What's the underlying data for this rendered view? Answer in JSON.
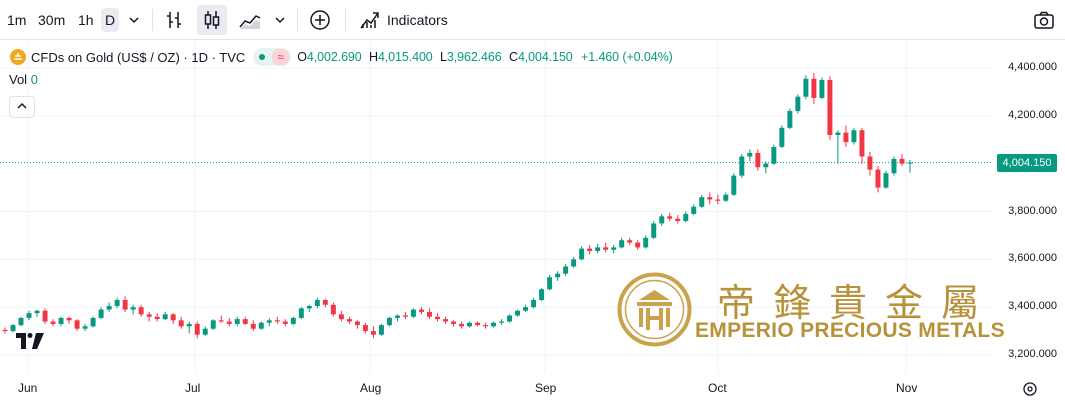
{
  "toolbar": {
    "intervals": [
      "1m",
      "30m",
      "1h",
      "D"
    ],
    "active_interval": "D",
    "indicators_label": "Indicators"
  },
  "legend": {
    "symbol": "CFDs on Gold (US$ / OZ) · 1D · TVC",
    "o_key": "O",
    "o_val": "4,002.690",
    "h_key": "H",
    "h_val": "4,015.400",
    "l_key": "L",
    "l_val": "3,962.466",
    "c_key": "C",
    "c_val": "4,004.150",
    "change": "+1.460 (+0.04%)",
    "vol_label": "Vol",
    "vol_value": "0"
  },
  "watermark": {
    "chinese": "帝鋒貴金屬",
    "english": "EMPERIO PRECIOUS METALS"
  },
  "colors": {
    "up": "#089981",
    "down": "#f23645",
    "gold": "#b8923a"
  },
  "chart_data": {
    "type": "candlestick",
    "x_labels": [
      "Jun",
      "Jul",
      "Aug",
      "Sep",
      "Oct",
      "Nov"
    ],
    "y_ticks": [
      "4,400.000",
      "4,200.000",
      "4,004.150",
      "3,800.000",
      "3,600.000",
      "3,400.000",
      "3,200.000"
    ],
    "y_tick_values": [
      4400,
      4200,
      3800,
      3600,
      3400,
      3200
    ],
    "ylim": [
      3160,
      4450
    ],
    "current_price": "4,004.150",
    "current_value": 4004.15,
    "series": [
      [
        3305,
        3315,
        3290,
        3300
      ],
      [
        3300,
        3330,
        3295,
        3325
      ],
      [
        3325,
        3360,
        3320,
        3355
      ],
      [
        3355,
        3385,
        3345,
        3375
      ],
      [
        3375,
        3390,
        3360,
        3385
      ],
      [
        3385,
        3395,
        3330,
        3340
      ],
      [
        3340,
        3350,
        3320,
        3330
      ],
      [
        3330,
        3360,
        3320,
        3355
      ],
      [
        3355,
        3360,
        3330,
        3345
      ],
      [
        3345,
        3350,
        3300,
        3310
      ],
      [
        3310,
        3330,
        3300,
        3320
      ],
      [
        3320,
        3360,
        3315,
        3355
      ],
      [
        3355,
        3400,
        3350,
        3390
      ],
      [
        3390,
        3420,
        3380,
        3405
      ],
      [
        3405,
        3440,
        3395,
        3430
      ],
      [
        3430,
        3445,
        3380,
        3390
      ],
      [
        3390,
        3410,
        3370,
        3400
      ],
      [
        3400,
        3410,
        3360,
        3370
      ],
      [
        3370,
        3380,
        3340,
        3360
      ],
      [
        3360,
        3375,
        3340,
        3350
      ],
      [
        3350,
        3380,
        3345,
        3370
      ],
      [
        3370,
        3375,
        3330,
        3345
      ],
      [
        3345,
        3360,
        3310,
        3320
      ],
      [
        3320,
        3340,
        3290,
        3330
      ],
      [
        3330,
        3340,
        3270,
        3285
      ],
      [
        3285,
        3320,
        3280,
        3310
      ],
      [
        3310,
        3350,
        3305,
        3345
      ],
      [
        3345,
        3365,
        3335,
        3340
      ],
      [
        3340,
        3355,
        3320,
        3330
      ],
      [
        3330,
        3360,
        3320,
        3350
      ],
      [
        3350,
        3360,
        3325,
        3330
      ],
      [
        3330,
        3345,
        3300,
        3310
      ],
      [
        3310,
        3340,
        3305,
        3335
      ],
      [
        3335,
        3355,
        3320,
        3345
      ],
      [
        3345,
        3360,
        3330,
        3340
      ],
      [
        3340,
        3350,
        3320,
        3330
      ],
      [
        3330,
        3360,
        3325,
        3355
      ],
      [
        3355,
        3400,
        3350,
        3395
      ],
      [
        3395,
        3410,
        3380,
        3405
      ],
      [
        3405,
        3440,
        3395,
        3430
      ],
      [
        3430,
        3435,
        3400,
        3410
      ],
      [
        3410,
        3420,
        3360,
        3370
      ],
      [
        3370,
        3385,
        3340,
        3350
      ],
      [
        3350,
        3360,
        3330,
        3340
      ],
      [
        3340,
        3345,
        3310,
        3325
      ],
      [
        3325,
        3335,
        3290,
        3300
      ],
      [
        3300,
        3320,
        3270,
        3285
      ],
      [
        3285,
        3330,
        3280,
        3325
      ],
      [
        3325,
        3360,
        3320,
        3355
      ],
      [
        3355,
        3370,
        3340,
        3365
      ],
      [
        3365,
        3380,
        3350,
        3360
      ],
      [
        3360,
        3395,
        3355,
        3390
      ],
      [
        3390,
        3400,
        3370,
        3380
      ],
      [
        3380,
        3395,
        3350,
        3360
      ],
      [
        3360,
        3375,
        3340,
        3350
      ],
      [
        3350,
        3360,
        3330,
        3340
      ],
      [
        3340,
        3345,
        3320,
        3330
      ],
      [
        3330,
        3340,
        3310,
        3320
      ],
      [
        3320,
        3340,
        3315,
        3335
      ],
      [
        3335,
        3340,
        3320,
        3325
      ],
      [
        3325,
        3335,
        3310,
        3320
      ],
      [
        3320,
        3340,
        3315,
        3335
      ],
      [
        3335,
        3350,
        3325,
        3340
      ],
      [
        3340,
        3370,
        3335,
        3365
      ],
      [
        3365,
        3390,
        3360,
        3385
      ],
      [
        3385,
        3410,
        3380,
        3400
      ],
      [
        3400,
        3440,
        3395,
        3430
      ],
      [
        3430,
        3480,
        3425,
        3475
      ],
      [
        3475,
        3535,
        3470,
        3525
      ],
      [
        3525,
        3550,
        3510,
        3540
      ],
      [
        3540,
        3580,
        3530,
        3570
      ],
      [
        3570,
        3610,
        3565,
        3600
      ],
      [
        3600,
        3655,
        3595,
        3645
      ],
      [
        3645,
        3660,
        3620,
        3635
      ],
      [
        3635,
        3665,
        3625,
        3650
      ],
      [
        3650,
        3670,
        3630,
        3640
      ],
      [
        3640,
        3660,
        3625,
        3650
      ],
      [
        3650,
        3690,
        3645,
        3680
      ],
      [
        3680,
        3690,
        3660,
        3670
      ],
      [
        3670,
        3680,
        3640,
        3650
      ],
      [
        3650,
        3700,
        3645,
        3690
      ],
      [
        3690,
        3760,
        3685,
        3750
      ],
      [
        3750,
        3790,
        3740,
        3780
      ],
      [
        3780,
        3795,
        3760,
        3770
      ],
      [
        3770,
        3785,
        3750,
        3760
      ],
      [
        3760,
        3800,
        3755,
        3790
      ],
      [
        3790,
        3830,
        3785,
        3820
      ],
      [
        3820,
        3870,
        3815,
        3860
      ],
      [
        3860,
        3880,
        3830,
        3850
      ],
      [
        3850,
        3870,
        3830,
        3845
      ],
      [
        3845,
        3880,
        3840,
        3870
      ],
      [
        3870,
        3960,
        3865,
        3950
      ],
      [
        3950,
        4040,
        3940,
        4030
      ],
      [
        4030,
        4060,
        4010,
        4045
      ],
      [
        4045,
        4060,
        3970,
        3985
      ],
      [
        3985,
        4010,
        3960,
        4000
      ],
      [
        4000,
        4080,
        3995,
        4070
      ],
      [
        4070,
        4160,
        4065,
        4150
      ],
      [
        4150,
        4230,
        4145,
        4220
      ],
      [
        4220,
        4290,
        4210,
        4280
      ],
      [
        4280,
        4370,
        4270,
        4355
      ],
      [
        4355,
        4380,
        4250,
        4275
      ],
      [
        4275,
        4360,
        4270,
        4350
      ],
      [
        4350,
        4365,
        4100,
        4120
      ],
      [
        4120,
        4140,
        4000,
        4130
      ],
      [
        4130,
        4160,
        4070,
        4090
      ],
      [
        4090,
        4150,
        4080,
        4140
      ],
      [
        4140,
        4150,
        4000,
        4030
      ],
      [
        4030,
        4050,
        3950,
        3975
      ],
      [
        3975,
        3990,
        3880,
        3900
      ],
      [
        3900,
        3970,
        3895,
        3960
      ],
      [
        3960,
        4030,
        3950,
        4020
      ],
      [
        4020,
        4040,
        3990,
        4000
      ],
      [
        4002.69,
        4015.4,
        3962.466,
        4004.15
      ]
    ]
  }
}
